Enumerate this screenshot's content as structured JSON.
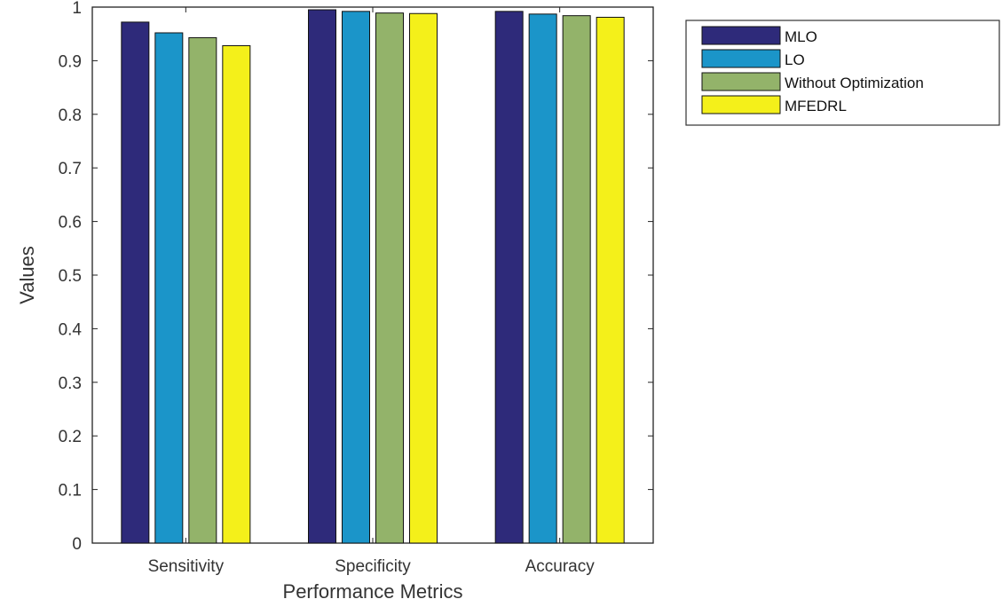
{
  "chart_data": {
    "type": "bar",
    "title": "",
    "xlabel": "Performance Metrics",
    "ylabel": "Values",
    "categories": [
      "Sensitivity",
      "Specificity",
      "Accuracy"
    ],
    "ylim": [
      0,
      1
    ],
    "yticks": [
      "0",
      "0.1",
      "0.2",
      "0.3",
      "0.4",
      "0.5",
      "0.6",
      "0.7",
      "0.8",
      "0.9",
      "1"
    ],
    "grid": false,
    "legend_position": "outside-top-right",
    "series": [
      {
        "name": "MLO",
        "color": "#2e2a7a",
        "values": [
          0.972,
          0.995,
          0.992
        ]
      },
      {
        "name": "LO",
        "color": "#1b95c9",
        "values": [
          0.952,
          0.992,
          0.987
        ]
      },
      {
        "name": "Without Optimization",
        "color": "#93b36a",
        "values": [
          0.943,
          0.989,
          0.984
        ]
      },
      {
        "name": "MFEDRL",
        "color": "#f4f01a",
        "values": [
          0.928,
          0.988,
          0.981
        ]
      }
    ]
  }
}
